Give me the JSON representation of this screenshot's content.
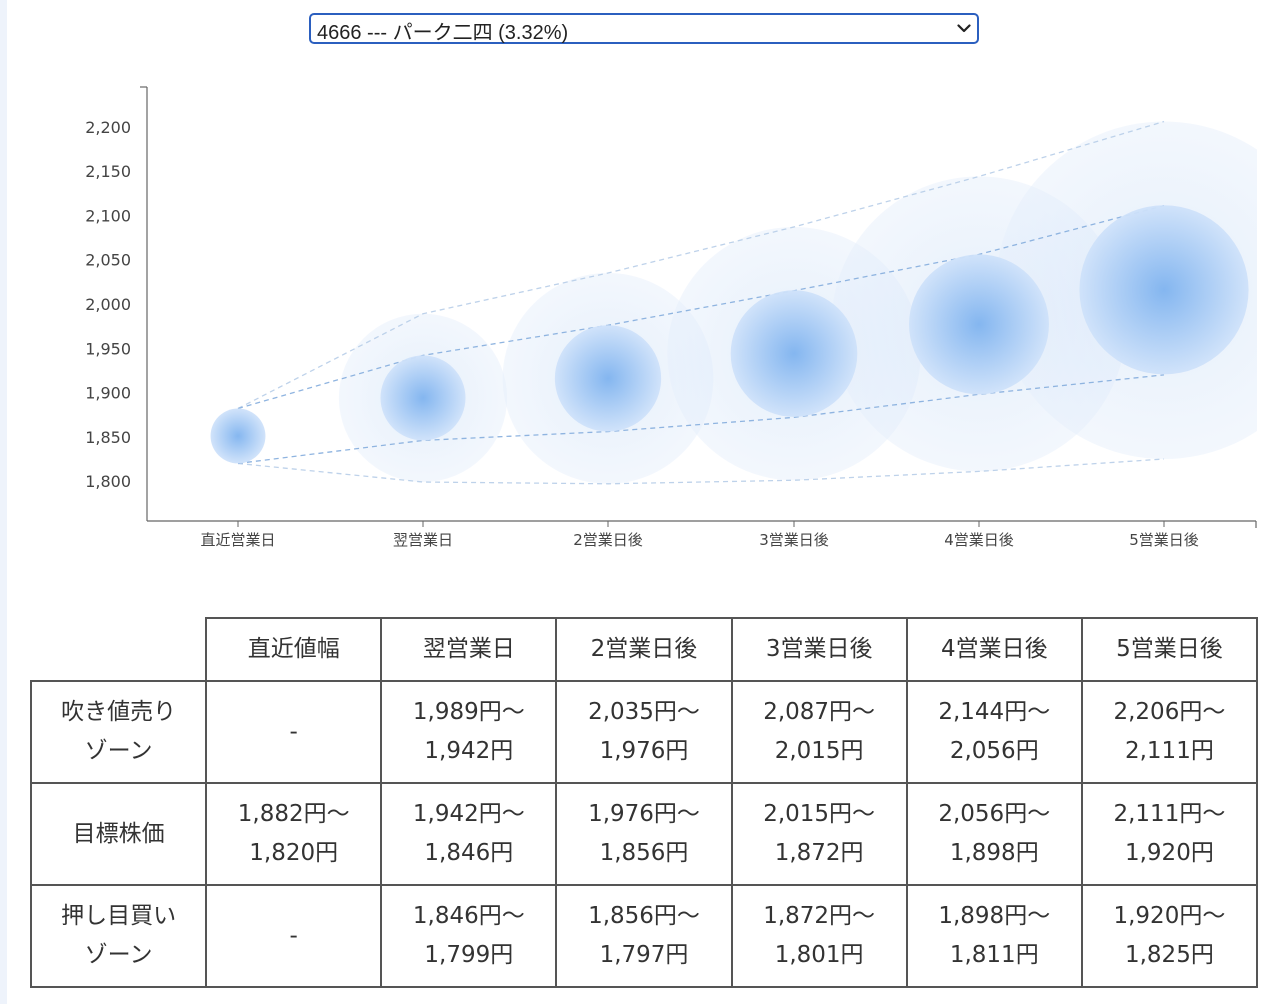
{
  "selector": {
    "value": "4666 --- パーク二四 (3.32%)"
  },
  "chart_data": {
    "type": "scatter",
    "categories": [
      "直近営業日",
      "翌営業日",
      "2営業日後",
      "3営業日後",
      "4営業日後",
      "5営業日後"
    ],
    "y_ticks": [
      "1,800",
      "1,850",
      "1,900",
      "1,950",
      "2,000",
      "2,050",
      "2,100",
      "2,150",
      "2,200"
    ],
    "ylim": [
      1755,
      2245
    ],
    "center": [
      1851,
      1894,
      1916,
      1944,
      1977,
      2016
    ],
    "upper": [
      1882,
      1942,
      1976,
      2015,
      2056,
      2111
    ],
    "lower": [
      1820,
      1846,
      1856,
      1872,
      1898,
      1920
    ],
    "outer_upper": [
      1882,
      1989,
      2035,
      2087,
      2144,
      2206
    ],
    "outer_lower": [
      1820,
      1799,
      1797,
      1801,
      1811,
      1825
    ],
    "bubble_color": "#a9ccf5",
    "line_color": "#8fb4e0",
    "grid": false
  },
  "table": {
    "headers": [
      "",
      "直近値幅",
      "翌営業日",
      "2営業日後",
      "3営業日後",
      "4営業日後",
      "5営業日後"
    ],
    "rows": [
      {
        "label": [
          "吹き値売り",
          "ゾーン"
        ],
        "cells": [
          [
            "-"
          ],
          [
            "1,989円〜",
            "1,942円"
          ],
          [
            "2,035円〜",
            "1,976円"
          ],
          [
            "2,087円〜",
            "2,015円"
          ],
          [
            "2,144円〜",
            "2,056円"
          ],
          [
            "2,206円〜",
            "2,111円"
          ]
        ]
      },
      {
        "label": [
          "目標株価"
        ],
        "cells": [
          [
            "1,882円〜",
            "1,820円"
          ],
          [
            "1,942円〜",
            "1,846円"
          ],
          [
            "1,976円〜",
            "1,856円"
          ],
          [
            "2,015円〜",
            "1,872円"
          ],
          [
            "2,056円〜",
            "1,898円"
          ],
          [
            "2,111円〜",
            "1,920円"
          ]
        ]
      },
      {
        "label": [
          "押し目買い",
          "ゾーン"
        ],
        "cells": [
          [
            "-"
          ],
          [
            "1,846円〜",
            "1,799円"
          ],
          [
            "1,856円〜",
            "1,797円"
          ],
          [
            "1,872円〜",
            "1,801円"
          ],
          [
            "1,898円〜",
            "1,811円"
          ],
          [
            "1,920円〜",
            "1,825円"
          ]
        ]
      }
    ]
  }
}
